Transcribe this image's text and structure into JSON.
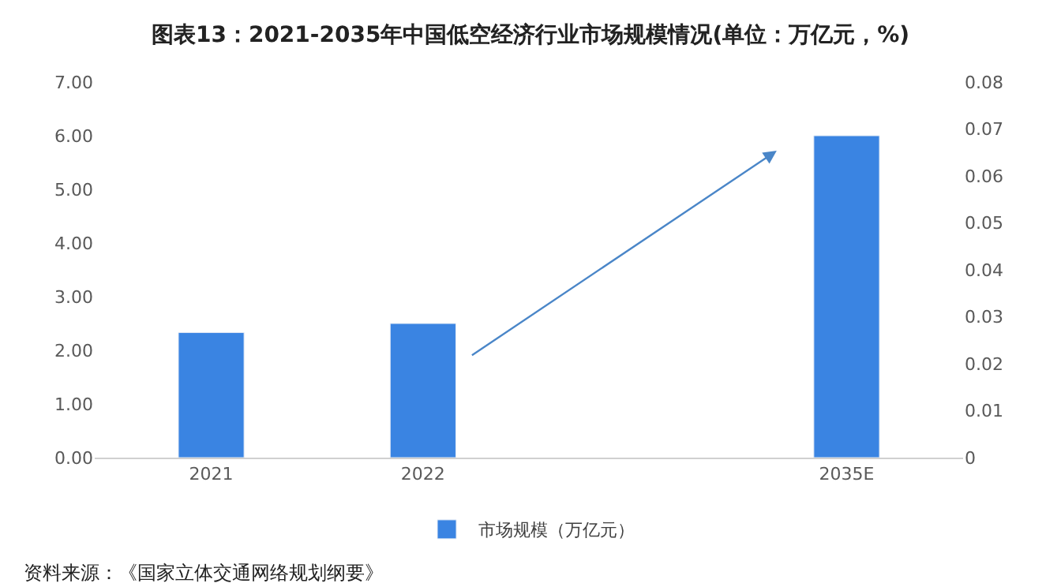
{
  "chart_data": {
    "type": "bar",
    "title": "图表13：2021-2035年中国低空经济行业市场规模情况(单位：万亿元，%)",
    "categories": [
      "2021",
      "2022",
      null,
      "2035E"
    ],
    "series": [
      {
        "name": "市场规模（万亿元）",
        "color": "#3a84e2",
        "values": [
          2.33,
          2.5,
          null,
          6.0
        ]
      }
    ],
    "ylim": [
      0,
      7
    ],
    "yticks": [
      {
        "value": 0,
        "label": "0.00"
      },
      {
        "value": 1,
        "label": "1.00"
      },
      {
        "value": 2,
        "label": "2.00"
      },
      {
        "value": 3,
        "label": "3.00"
      },
      {
        "value": 4,
        "label": "4.00"
      },
      {
        "value": 5,
        "label": "5.00"
      },
      {
        "value": 6,
        "label": "6.00"
      },
      {
        "value": 7,
        "label": "7.00"
      }
    ],
    "y2lim": [
      0,
      0.08
    ],
    "y2ticks": [
      0,
      0.01,
      0.02,
      0.03,
      0.04,
      0.05,
      0.06,
      0.07,
      0.08
    ],
    "legend": "bottom",
    "annotations": [
      "资料来源：《国家立体交通网络规划纲要》"
    ]
  }
}
